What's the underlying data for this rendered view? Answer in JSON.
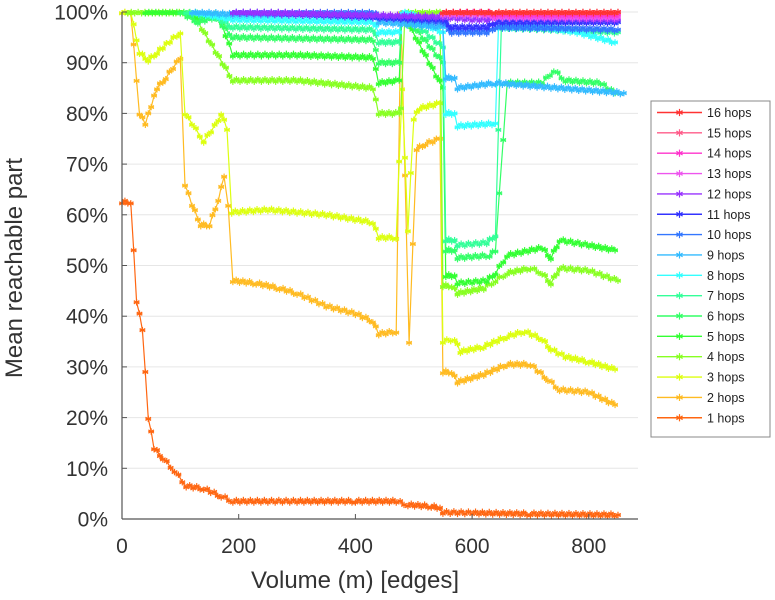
{
  "chart_data": {
    "type": "line",
    "title": "",
    "xlabel": "Volume (m) [edges]",
    "ylabel": "Mean reachable part",
    "xlim": [
      0,
      885
    ],
    "ylim": [
      0,
      100
    ],
    "x_ticks": [
      0,
      200,
      400,
      600,
      800
    ],
    "x_tick_labels": [
      "0",
      "200",
      "400",
      "600",
      "800"
    ],
    "y_ticks": [
      0,
      10,
      20,
      30,
      40,
      50,
      60,
      70,
      80,
      90,
      100
    ],
    "y_tick_labels": [
      "0%",
      "10%",
      "20%",
      "30%",
      "40%",
      "50%",
      "60%",
      "70%",
      "80%",
      "90%",
      "100%"
    ],
    "grid": "horizontal",
    "legend_position": "right",
    "marker": "asterisk",
    "series": [
      {
        "name": "16 hops",
        "color": "#ff3333",
        "points": [
          [
            550,
            100
          ],
          [
            640,
            100
          ],
          [
            850,
            100
          ]
        ]
      },
      {
        "name": "15 hops",
        "color": "#ff5c8a",
        "points": [
          [
            550,
            100
          ],
          [
            640,
            100
          ],
          [
            850,
            100
          ]
        ]
      },
      {
        "name": "14 hops",
        "color": "#ff33cc",
        "points": [
          [
            550,
            100
          ],
          [
            625,
            100
          ],
          [
            640,
            99.5
          ],
          [
            850,
            99.5
          ]
        ]
      },
      {
        "name": "13 hops",
        "color": "#ee55ee",
        "points": [
          [
            550,
            99.5
          ],
          [
            625,
            99.5
          ],
          [
            640,
            99
          ],
          [
            850,
            99
          ]
        ]
      },
      {
        "name": "12 hops",
        "color": "#9933ff",
        "points": [
          [
            190,
            100
          ],
          [
            550,
            99
          ],
          [
            600,
            98.5
          ],
          [
            625,
            98.5
          ],
          [
            640,
            99
          ],
          [
            850,
            98.5
          ]
        ]
      },
      {
        "name": "11 hops",
        "color": "#3333ff",
        "points": [
          [
            190,
            100
          ],
          [
            550,
            98.5
          ],
          [
            565,
            97
          ],
          [
            625,
            97
          ],
          [
            640,
            98
          ],
          [
            850,
            98
          ]
        ]
      },
      {
        "name": "10 hops",
        "color": "#3377ff",
        "points": [
          [
            190,
            100
          ],
          [
            430,
            100
          ],
          [
            440,
            99
          ],
          [
            550,
            98
          ],
          [
            565,
            96
          ],
          [
            625,
            96
          ],
          [
            640,
            97
          ],
          [
            850,
            96.5
          ]
        ]
      },
      {
        "name": "9 hops",
        "color": "#33bbff",
        "points": [
          [
            120,
            100
          ],
          [
            190,
            99.5
          ],
          [
            430,
            99.5
          ],
          [
            440,
            98
          ],
          [
            550,
            97
          ],
          [
            555,
            87
          ],
          [
            570,
            87
          ],
          [
            575,
            85
          ],
          [
            640,
            86
          ],
          [
            860,
            84
          ]
        ]
      },
      {
        "name": "8 hops",
        "color": "#33ffff",
        "points": [
          [
            120,
            100
          ],
          [
            190,
            98.5
          ],
          [
            430,
            98
          ],
          [
            440,
            96
          ],
          [
            475,
            96
          ],
          [
            480,
            100
          ],
          [
            495,
            100
          ],
          [
            510,
            98
          ],
          [
            550,
            96
          ],
          [
            555,
            80
          ],
          [
            570,
            80
          ],
          [
            575,
            77.5
          ],
          [
            640,
            78
          ],
          [
            645,
            97
          ],
          [
            720,
            97
          ],
          [
            780,
            96
          ],
          [
            845,
            94
          ]
        ]
      },
      {
        "name": "7 hops",
        "color": "#33ff99",
        "points": [
          [
            110,
            100
          ],
          [
            160,
            99
          ],
          [
            190,
            97
          ],
          [
            430,
            96.5
          ],
          [
            440,
            94
          ],
          [
            475,
            94
          ],
          [
            480,
            100
          ],
          [
            550,
            93
          ],
          [
            555,
            55
          ],
          [
            570,
            55
          ],
          [
            575,
            54
          ],
          [
            625,
            54.5
          ],
          [
            640,
            56
          ],
          [
            650,
            97
          ],
          [
            850,
            96
          ]
        ]
      },
      {
        "name": "6 hops",
        "color": "#33ff66",
        "points": [
          [
            100,
            100
          ],
          [
            130,
            98
          ],
          [
            160,
            99
          ],
          [
            190,
            95
          ],
          [
            430,
            94.5
          ],
          [
            440,
            90
          ],
          [
            475,
            90
          ],
          [
            480,
            100
          ],
          [
            550,
            90
          ],
          [
            555,
            53
          ],
          [
            570,
            53
          ],
          [
            575,
            51.5
          ],
          [
            630,
            52
          ],
          [
            640,
            53
          ],
          [
            660,
            86
          ],
          [
            720,
            86
          ],
          [
            740,
            88.5
          ],
          [
            760,
            86.5
          ],
          [
            820,
            86
          ],
          [
            845,
            84
          ]
        ]
      },
      {
        "name": "5 hops",
        "color": "#33ff33",
        "points": [
          [
            40,
            100
          ],
          [
            100,
            100
          ],
          [
            130,
            99
          ],
          [
            165,
            99.5
          ],
          [
            190,
            91.5
          ],
          [
            300,
            91.5
          ],
          [
            430,
            91
          ],
          [
            440,
            86
          ],
          [
            475,
            86.5
          ],
          [
            480,
            100
          ],
          [
            550,
            85
          ],
          [
            555,
            48
          ],
          [
            570,
            48
          ],
          [
            575,
            46.5
          ],
          [
            625,
            47
          ],
          [
            640,
            48.5
          ],
          [
            660,
            52
          ],
          [
            720,
            53.5
          ],
          [
            735,
            51.5
          ],
          [
            750,
            55
          ],
          [
            800,
            54
          ],
          [
            845,
            53
          ]
        ]
      },
      {
        "name": "4 hops",
        "color": "#88ff22",
        "points": [
          [
            10,
            100
          ],
          [
            110,
            100
          ],
          [
            125,
            99
          ],
          [
            190,
            86.5
          ],
          [
            300,
            86.5
          ],
          [
            430,
            85
          ],
          [
            440,
            80
          ],
          [
            475,
            80
          ],
          [
            478,
            81
          ],
          [
            485,
            100
          ],
          [
            545,
            100
          ],
          [
            550,
            46
          ],
          [
            565,
            46
          ],
          [
            575,
            44.5
          ],
          [
            620,
            45.5
          ],
          [
            640,
            47
          ],
          [
            660,
            48.5
          ],
          [
            700,
            49.5
          ],
          [
            720,
            48.5
          ],
          [
            735,
            46.5
          ],
          [
            750,
            49.5
          ],
          [
            800,
            49
          ],
          [
            850,
            47
          ]
        ]
      },
      {
        "name": "3 hops",
        "color": "#ddff11",
        "points": [
          [
            0,
            100
          ],
          [
            15,
            100
          ],
          [
            30,
            92
          ],
          [
            45,
            90.5
          ],
          [
            60,
            92
          ],
          [
            70,
            93
          ],
          [
            100,
            96
          ],
          [
            108,
            80
          ],
          [
            120,
            78
          ],
          [
            140,
            74.5
          ],
          [
            165,
            78.5
          ],
          [
            170,
            80
          ],
          [
            180,
            77
          ],
          [
            188,
            60.5
          ],
          [
            250,
            61
          ],
          [
            300,
            60.5
          ],
          [
            350,
            60
          ],
          [
            430,
            58.5
          ],
          [
            440,
            55.5
          ],
          [
            470,
            55.5
          ],
          [
            480,
            85
          ],
          [
            490,
            57
          ],
          [
            500,
            79
          ],
          [
            510,
            81
          ],
          [
            545,
            82
          ],
          [
            550,
            35
          ],
          [
            570,
            35.5
          ],
          [
            580,
            33
          ],
          [
            620,
            34
          ],
          [
            660,
            36
          ],
          [
            690,
            37
          ],
          [
            720,
            35.5
          ],
          [
            735,
            33.5
          ],
          [
            760,
            32
          ],
          [
            800,
            31
          ],
          [
            845,
            29.5
          ]
        ]
      },
      {
        "name": "2 hops",
        "color": "#ffbb22",
        "points": [
          [
            0,
            100
          ],
          [
            15,
            100
          ],
          [
            30,
            80
          ],
          [
            40,
            78
          ],
          [
            50,
            81.5
          ],
          [
            60,
            85
          ],
          [
            75,
            87
          ],
          [
            100,
            91
          ],
          [
            108,
            66
          ],
          [
            120,
            62
          ],
          [
            135,
            58
          ],
          [
            150,
            58
          ],
          [
            165,
            63
          ],
          [
            175,
            67.5
          ],
          [
            182,
            62
          ],
          [
            190,
            47
          ],
          [
            230,
            46.5
          ],
          [
            270,
            45.5
          ],
          [
            300,
            44.5
          ],
          [
            350,
            42
          ],
          [
            400,
            40.5
          ],
          [
            430,
            39
          ],
          [
            440,
            36.5
          ],
          [
            470,
            37
          ],
          [
            478,
            100
          ],
          [
            492,
            35
          ],
          [
            505,
            73
          ],
          [
            520,
            74
          ],
          [
            545,
            75
          ],
          [
            550,
            29
          ],
          [
            565,
            29
          ],
          [
            575,
            27
          ],
          [
            620,
            28.5
          ],
          [
            660,
            30.5
          ],
          [
            700,
            30.5
          ],
          [
            730,
            27.5
          ],
          [
            750,
            25.5
          ],
          [
            800,
            25
          ],
          [
            845,
            22.5
          ]
        ]
      },
      {
        "name": "1 hops",
        "color": "#ff6611",
        "points": [
          [
            0,
            62.5
          ],
          [
            15,
            62.5
          ],
          [
            25,
            43
          ],
          [
            35,
            37.5
          ],
          [
            45,
            20
          ],
          [
            55,
            14
          ],
          [
            70,
            12
          ],
          [
            90,
            9.5
          ],
          [
            110,
            6.5
          ],
          [
            140,
            6
          ],
          [
            170,
            4.5
          ],
          [
            190,
            3.5
          ],
          [
            250,
            3.5
          ],
          [
            300,
            3.5
          ],
          [
            400,
            3.5
          ],
          [
            470,
            3.5
          ],
          [
            490,
            2.8
          ],
          [
            530,
            2.5
          ],
          [
            545,
            2.2
          ],
          [
            550,
            1.3
          ],
          [
            600,
            1.2
          ],
          [
            700,
            1
          ],
          [
            850,
            0.8
          ]
        ]
      }
    ]
  }
}
